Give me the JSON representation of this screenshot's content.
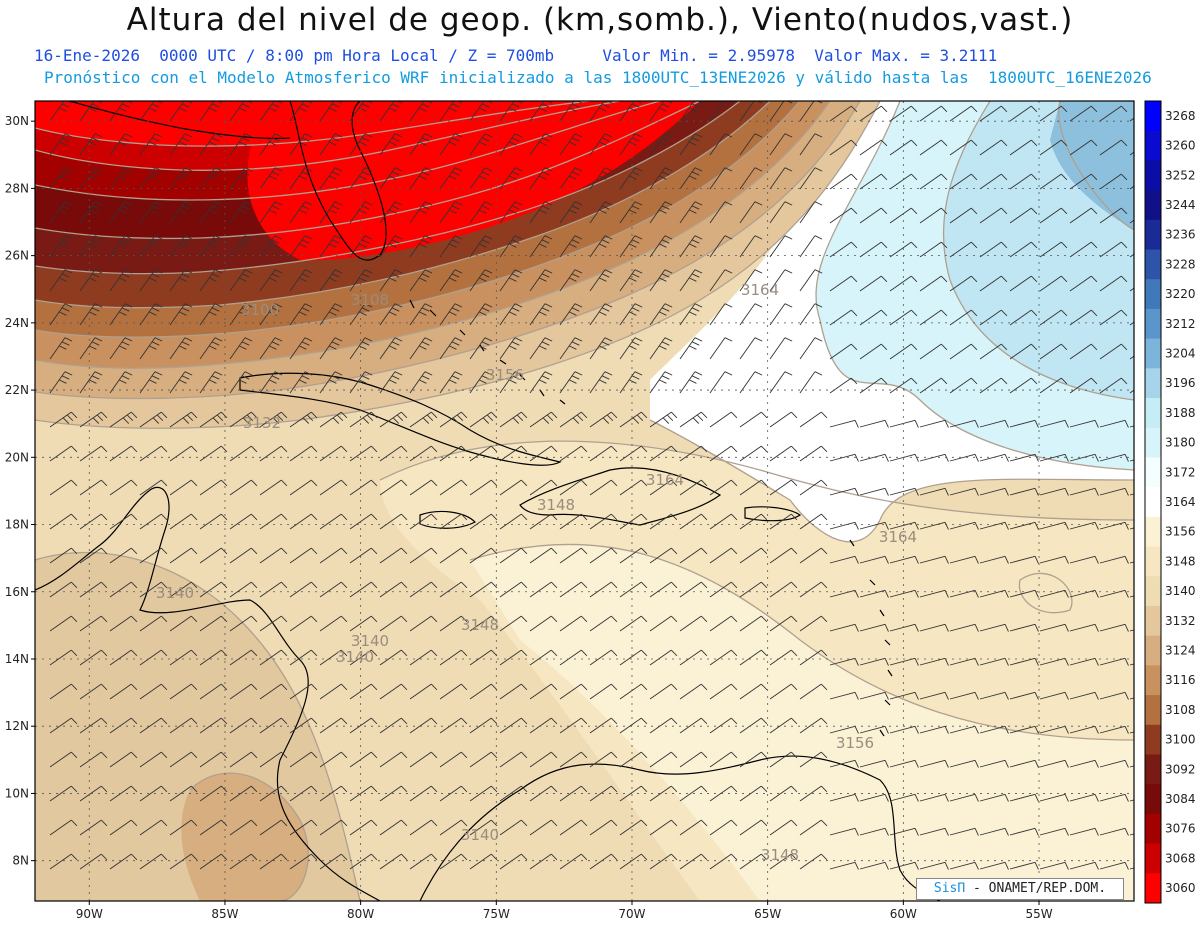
{
  "header": {
    "title": "Altura del nivel de geop. (km,somb.), Viento(nudos,vast.)",
    "subtitle_line1": "16-Ene-2026  0000 UTC / 8:00 pm Hora Local / Z = 700mb     Valor Min. = 2.95978  Valor Max. = 3.2111",
    "subtitle_line2": "Pronóstico con el Modelo Atmosferico WRF inicializado a las 1800UTC_13ENE2026 y válido hasta las  1800UTC_16ENE2026"
  },
  "map": {
    "lon_range": [
      -92.0,
      -51.5
    ],
    "lat_range": [
      6.8,
      30.6
    ],
    "lat_ticks": [
      "30N",
      "28N",
      "26N",
      "24N",
      "22N",
      "20N",
      "18N",
      "16N",
      "14N",
      "12N",
      "10N",
      "8N"
    ],
    "lon_ticks": [
      "90W",
      "85W",
      "80W",
      "75W",
      "70W",
      "65W",
      "60W",
      "55W"
    ],
    "contour_labels": [
      "3100",
      "3108",
      "3132",
      "3140",
      "3140",
      "3140",
      "3140",
      "3148",
      "3148",
      "3148",
      "3156",
      "3156",
      "3164",
      "3164",
      "3164"
    ]
  },
  "colorbar": {
    "levels": [
      "3268",
      "3260",
      "3252",
      "3244",
      "3236",
      "3228",
      "3220",
      "3212",
      "3204",
      "3196",
      "3188",
      "3180",
      "3172",
      "3164",
      "3156",
      "3148",
      "3140",
      "3132",
      "3124",
      "3116",
      "3108",
      "3100",
      "3092",
      "3084",
      "3076",
      "3068",
      "3060"
    ],
    "colors": [
      "#0000ff",
      "#0a0ad0",
      "#0c0ca6",
      "#101088",
      "#1a2a96",
      "#2d54a8",
      "#3f79ba",
      "#5a96cb",
      "#7db4db",
      "#a6d4ea",
      "#c6ecf5",
      "#d6f4fa",
      "#f4feff",
      "#ffffff",
      "#fbf2d6",
      "#f6e6c1",
      "#eedcb2",
      "#e4c79c",
      "#d7ae7f",
      "#c9915f",
      "#b3713f",
      "#8f3b20",
      "#7a1a14",
      "#780a0a",
      "#a30000",
      "#cc0000",
      "#ff0000"
    ]
  },
  "credit": {
    "logo": "SisΠ",
    "text": "- ONAMET/REP.DOM."
  }
}
